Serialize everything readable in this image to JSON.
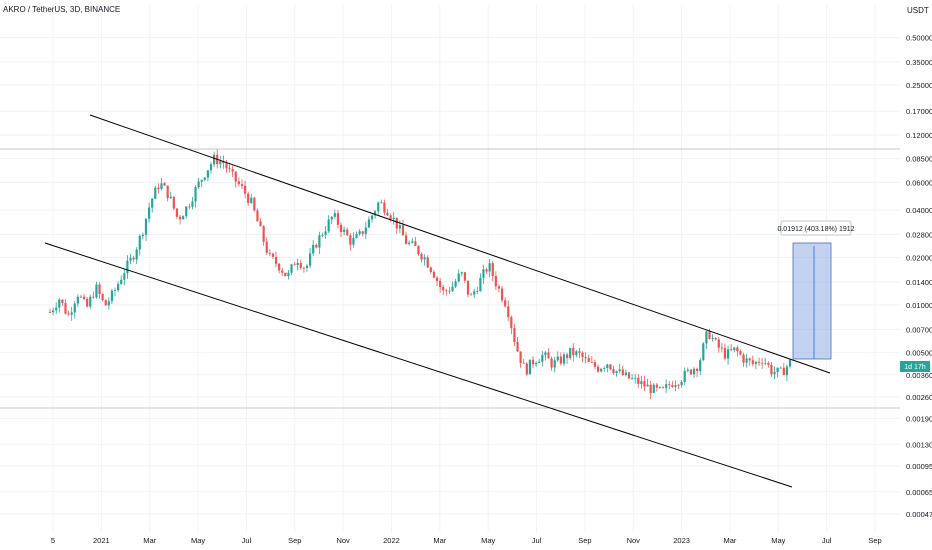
{
  "header": {
    "title": "AKRO / TetherUS, 3D, BINANCE"
  },
  "chart_data": {
    "type": "candlestick",
    "title": "AKRO / TetherUS, 3D, BINANCE",
    "y_unit": "USDT",
    "y_scale": "log",
    "ylim": [
      0.0004,
      0.6
    ],
    "y_ticks": [
      "0.50000",
      "0.35000",
      "0.25000",
      "0.17000",
      "0.12000",
      "0.08500",
      "0.06000",
      "0.04000",
      "0.02800",
      "0.02000",
      "0.01400",
      "0.01000",
      "0.00700",
      "0.00500",
      "0.00360",
      "0.00260",
      "0.00190",
      "0.00130",
      "0.00095",
      "0.00065",
      "0.00047"
    ],
    "x_ticks": [
      "5",
      "2021",
      "Mar",
      "May",
      "Jul",
      "Sep",
      "Nov",
      "2022",
      "Mar",
      "May",
      "Jul",
      "Sep",
      "Nov",
      "2023",
      "Mar",
      "May",
      "Jul",
      "Sep"
    ],
    "current_price_label": "1d 17h",
    "annotation": "0.01912 (403.18%) 1912",
    "colors": {
      "up": "#26a69a",
      "down": "#ef5350",
      "trendline": "#000000",
      "box": "#7b9edb"
    },
    "price_path": [
      0.009,
      0.011,
      0.0085,
      0.012,
      0.0095,
      0.013,
      0.0098,
      0.012,
      0.016,
      0.02,
      0.028,
      0.045,
      0.06,
      0.05,
      0.035,
      0.042,
      0.055,
      0.07,
      0.085,
      0.08,
      0.065,
      0.055,
      0.045,
      0.03,
      0.02,
      0.018,
      0.015,
      0.02,
      0.017,
      0.024,
      0.03,
      0.037,
      0.03,
      0.025,
      0.028,
      0.035,
      0.045,
      0.04,
      0.032,
      0.025,
      0.023,
      0.02,
      0.016,
      0.012,
      0.013,
      0.016,
      0.011,
      0.014,
      0.018,
      0.013,
      0.01,
      0.0055,
      0.0038,
      0.0045,
      0.0048,
      0.0042,
      0.0045,
      0.005,
      0.0048,
      0.0042,
      0.004,
      0.0043,
      0.0038,
      0.0035,
      0.0033,
      0.0031,
      0.0029,
      0.0028,
      0.0032,
      0.0034,
      0.0038,
      0.0042,
      0.0068,
      0.0055,
      0.0048,
      0.0052,
      0.0045,
      0.0042,
      0.0046,
      0.0038,
      0.0037,
      0.0043
    ]
  }
}
